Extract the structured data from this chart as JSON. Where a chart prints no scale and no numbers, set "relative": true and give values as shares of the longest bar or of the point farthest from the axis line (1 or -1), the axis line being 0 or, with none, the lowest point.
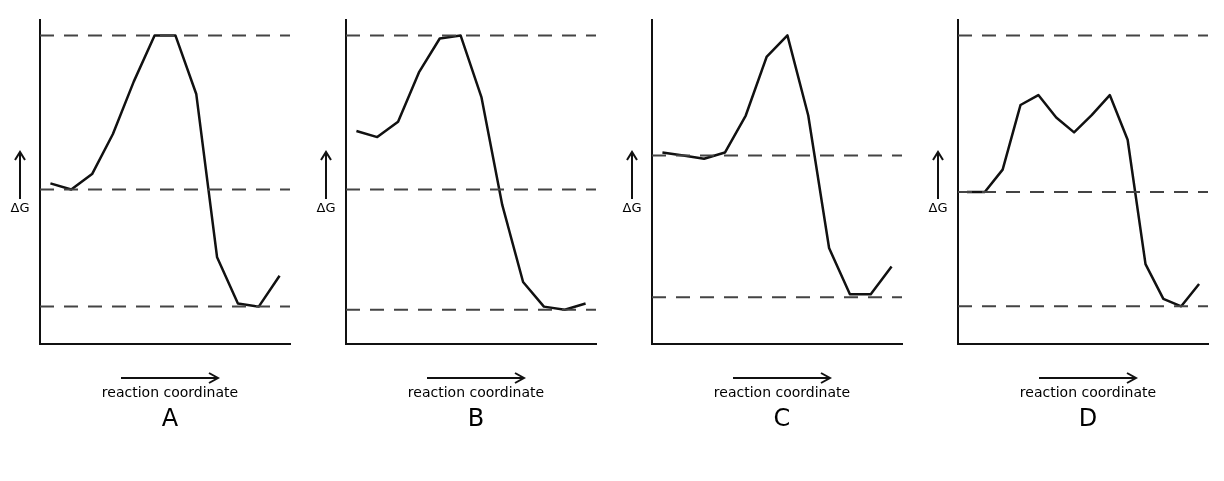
{
  "chart_data": [
    {
      "type": "line",
      "title": "A",
      "xlabel": "reaction coordinate",
      "ylabel": "ΔG",
      "relative": true,
      "grid": false,
      "legend": false,
      "marker": "none",
      "line_style": "solid",
      "categories": [
        null,
        null,
        null,
        null,
        null,
        null,
        null,
        null,
        null,
        null,
        null,
        null
      ],
      "series": [
        {
          "color": "#111111",
          "values": [
            0.52,
            0.5,
            0.55,
            0.68,
            0.85,
            1.0,
            1.0,
            0.81,
            0.28,
            0.13,
            0.12,
            0.22
          ]
        }
      ],
      "ref_lines": [
        {
          "axis": "y",
          "value": 1.0,
          "line_style": "dashed",
          "color": "#444444"
        },
        {
          "axis": "y",
          "value": 0.5,
          "line_style": "dashed",
          "color": "#444444"
        },
        {
          "axis": "y",
          "value": 0.12,
          "line_style": "dashed",
          "color": "#444444"
        }
      ]
    },
    {
      "type": "line",
      "title": "B",
      "xlabel": "reaction coordinate",
      "ylabel": "ΔG",
      "relative": true,
      "grid": false,
      "legend": false,
      "marker": "none",
      "line_style": "solid",
      "categories": [
        null,
        null,
        null,
        null,
        null,
        null,
        null,
        null,
        null,
        null,
        null,
        null
      ],
      "series": [
        {
          "color": "#111111",
          "values": [
            0.69,
            0.67,
            0.72,
            0.88,
            0.99,
            1.0,
            0.8,
            0.45,
            0.2,
            0.12,
            0.11,
            0.13
          ]
        }
      ],
      "ref_lines": [
        {
          "axis": "y",
          "value": 1.0,
          "line_style": "dashed",
          "color": "#444444"
        },
        {
          "axis": "y",
          "value": 0.5,
          "line_style": "dashed",
          "color": "#444444"
        },
        {
          "axis": "y",
          "value": 0.11,
          "line_style": "dashed",
          "color": "#444444"
        }
      ]
    },
    {
      "type": "line",
      "title": "C",
      "xlabel": "reaction coordinate",
      "ylabel": "ΔG",
      "relative": true,
      "grid": false,
      "legend": false,
      "marker": "none",
      "line_style": "solid",
      "categories": [
        null,
        null,
        null,
        null,
        null,
        null,
        null,
        null,
        null,
        null,
        null,
        null
      ],
      "series": [
        {
          "color": "#111111",
          "values": [
            0.62,
            0.61,
            0.6,
            0.62,
            0.74,
            0.93,
            1.0,
            0.74,
            0.31,
            0.16,
            0.16,
            0.25
          ]
        }
      ],
      "ref_lines": [
        {
          "axis": "y",
          "value": 0.61,
          "line_style": "dashed",
          "color": "#444444"
        },
        {
          "axis": "y",
          "value": 0.15,
          "line_style": "dashed",
          "color": "#444444"
        }
      ]
    },
    {
      "type": "line",
      "title": "D",
      "xlabel": "reaction coordinate",
      "ylabel": "ΔG",
      "relative": true,
      "grid": false,
      "legend": false,
      "marker": "none",
      "line_style": "solid",
      "categories": [
        null,
        null,
        null,
        null,
        null,
        null,
        null,
        null,
        null,
        null,
        null,
        null,
        null,
        null
      ],
      "series": [
        {
          "color": "#111111",
          "values": [
            0.61,
            0.61,
            0.7,
            0.96,
            1.0,
            0.91,
            0.85,
            0.92,
            1.0,
            0.82,
            0.32,
            0.18,
            0.15,
            0.24
          ]
        }
      ],
      "ref_lines": [
        {
          "axis": "y",
          "value": 1.24,
          "line_style": "dashed",
          "color": "#444444"
        },
        {
          "axis": "y",
          "value": 0.61,
          "line_style": "dashed",
          "color": "#444444"
        },
        {
          "axis": "y",
          "value": 0.15,
          "line_style": "dashed",
          "color": "#444444"
        }
      ]
    }
  ]
}
